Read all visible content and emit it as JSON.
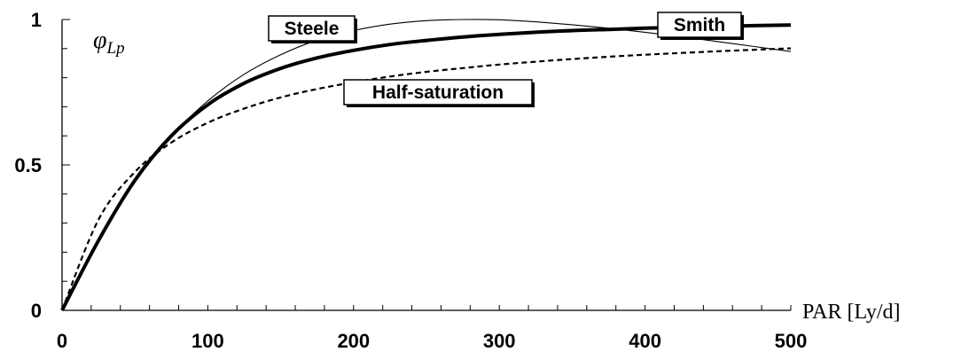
{
  "chart_data": {
    "type": "line",
    "title": "",
    "xlabel": "PAR [Ly/d]",
    "ylabel": "φLp",
    "ylabel_main": "φ",
    "ylabel_sub": "Lp",
    "xlim": [
      0,
      500
    ],
    "ylim": [
      0,
      1
    ],
    "x_ticks": [
      "0",
      "100",
      "200",
      "300",
      "400",
      "500"
    ],
    "y_ticks": [
      "0",
      "0.5",
      "1"
    ],
    "grid": false,
    "series": [
      {
        "name": "Steele",
        "style": "thin-solid",
        "x": [
          0,
          25,
          50,
          75,
          100,
          125,
          150,
          175,
          200,
          225,
          250,
          275,
          300,
          325,
          350,
          375,
          400,
          425,
          450,
          475,
          500
        ],
        "y": [
          0,
          0.243,
          0.442,
          0.599,
          0.72,
          0.812,
          0.879,
          0.929,
          0.962,
          0.984,
          0.996,
          1.0,
          0.999,
          0.992,
          0.982,
          0.97,
          0.956,
          0.941,
          0.924,
          0.907,
          0.89
        ]
      },
      {
        "name": "Smith",
        "style": "thick-solid",
        "x": [
          0,
          25,
          50,
          75,
          100,
          125,
          150,
          175,
          200,
          225,
          250,
          275,
          300,
          325,
          350,
          375,
          400,
          425,
          450,
          475,
          500
        ],
        "y": [
          0,
          0.24,
          0.447,
          0.6,
          0.707,
          0.781,
          0.832,
          0.868,
          0.894,
          0.914,
          0.928,
          0.94,
          0.949,
          0.956,
          0.962,
          0.966,
          0.97,
          0.973,
          0.976,
          0.979,
          0.981
        ]
      },
      {
        "name": "Half-saturation",
        "style": "dashed",
        "x": [
          0,
          25,
          50,
          75,
          100,
          125,
          150,
          175,
          200,
          225,
          250,
          275,
          300,
          325,
          350,
          375,
          400,
          425,
          450,
          475,
          500
        ],
        "y": [
          0,
          0.312,
          0.476,
          0.577,
          0.645,
          0.694,
          0.732,
          0.761,
          0.784,
          0.804,
          0.82,
          0.833,
          0.845,
          0.855,
          0.864,
          0.872,
          0.879,
          0.885,
          0.891,
          0.896,
          0.901
        ]
      }
    ],
    "annotations": [
      {
        "text": "Steele",
        "series": "Steele"
      },
      {
        "text": "Smith",
        "series": "Smith"
      },
      {
        "text": "Half-saturation",
        "series": "Half-saturation"
      }
    ]
  }
}
